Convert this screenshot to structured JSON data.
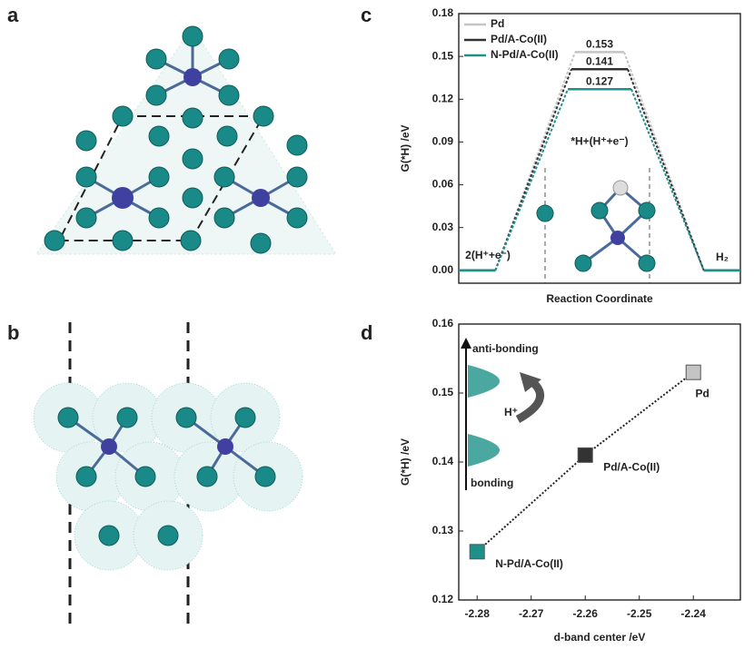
{
  "panel_labels": [
    "a",
    "b",
    "c",
    "d"
  ],
  "chart_data": [
    {
      "type": "energy",
      "ylabel": "G(*H) /eV",
      "xlabel": "Reaction Coordinate",
      "state_labels": [
        "2(H⁺+e⁻)",
        "*H+(H⁺+e⁻)",
        "H₂"
      ],
      "series": [
        {
          "name": "Pd",
          "color": "#c4c4c4",
          "values": [
            0,
            0.153,
            0
          ]
        },
        {
          "name": "Pd/A-Co(II)",
          "color": "#333333",
          "values": [
            0,
            0.141,
            0
          ]
        },
        {
          "name": "N-Pd/A-Co(II)",
          "color": "#1f8f8a",
          "values": [
            0,
            0.127,
            0
          ]
        }
      ],
      "ylim": [
        -0.009,
        0.18
      ],
      "yticks": [
        {
          "value": 0,
          "label": "0.00"
        },
        0.03,
        0.06,
        0.09,
        0.12,
        0.15,
        0.18
      ],
      "legend": "upper-left"
    },
    {
      "type": "scatter",
      "xlabel": "d-band center /eV",
      "ylabel": "G(*H) /eV",
      "x": [
        -2.28,
        -2.26,
        -2.24
      ],
      "y": [
        0.127,
        0.141,
        0.153
      ],
      "point_labels": [
        "N-Pd/A-Co(II)",
        "Pd/A-Co(II)",
        "Pd"
      ],
      "colors": [
        "#1f8f8a",
        "#333333",
        "#c4c4c4"
      ],
      "xlim": [
        -2.2834,
        -2.2313
      ],
      "ylim": [
        0.12,
        0.16
      ],
      "xticks": [
        -2.28,
        -2.27,
        -2.26,
        -2.25,
        -2.24
      ],
      "yticks": [
        0.12,
        0.13,
        0.14,
        0.15,
        0.16
      ],
      "inset": [
        "anti-bonding",
        "H⁺",
        "bonding"
      ]
    }
  ]
}
